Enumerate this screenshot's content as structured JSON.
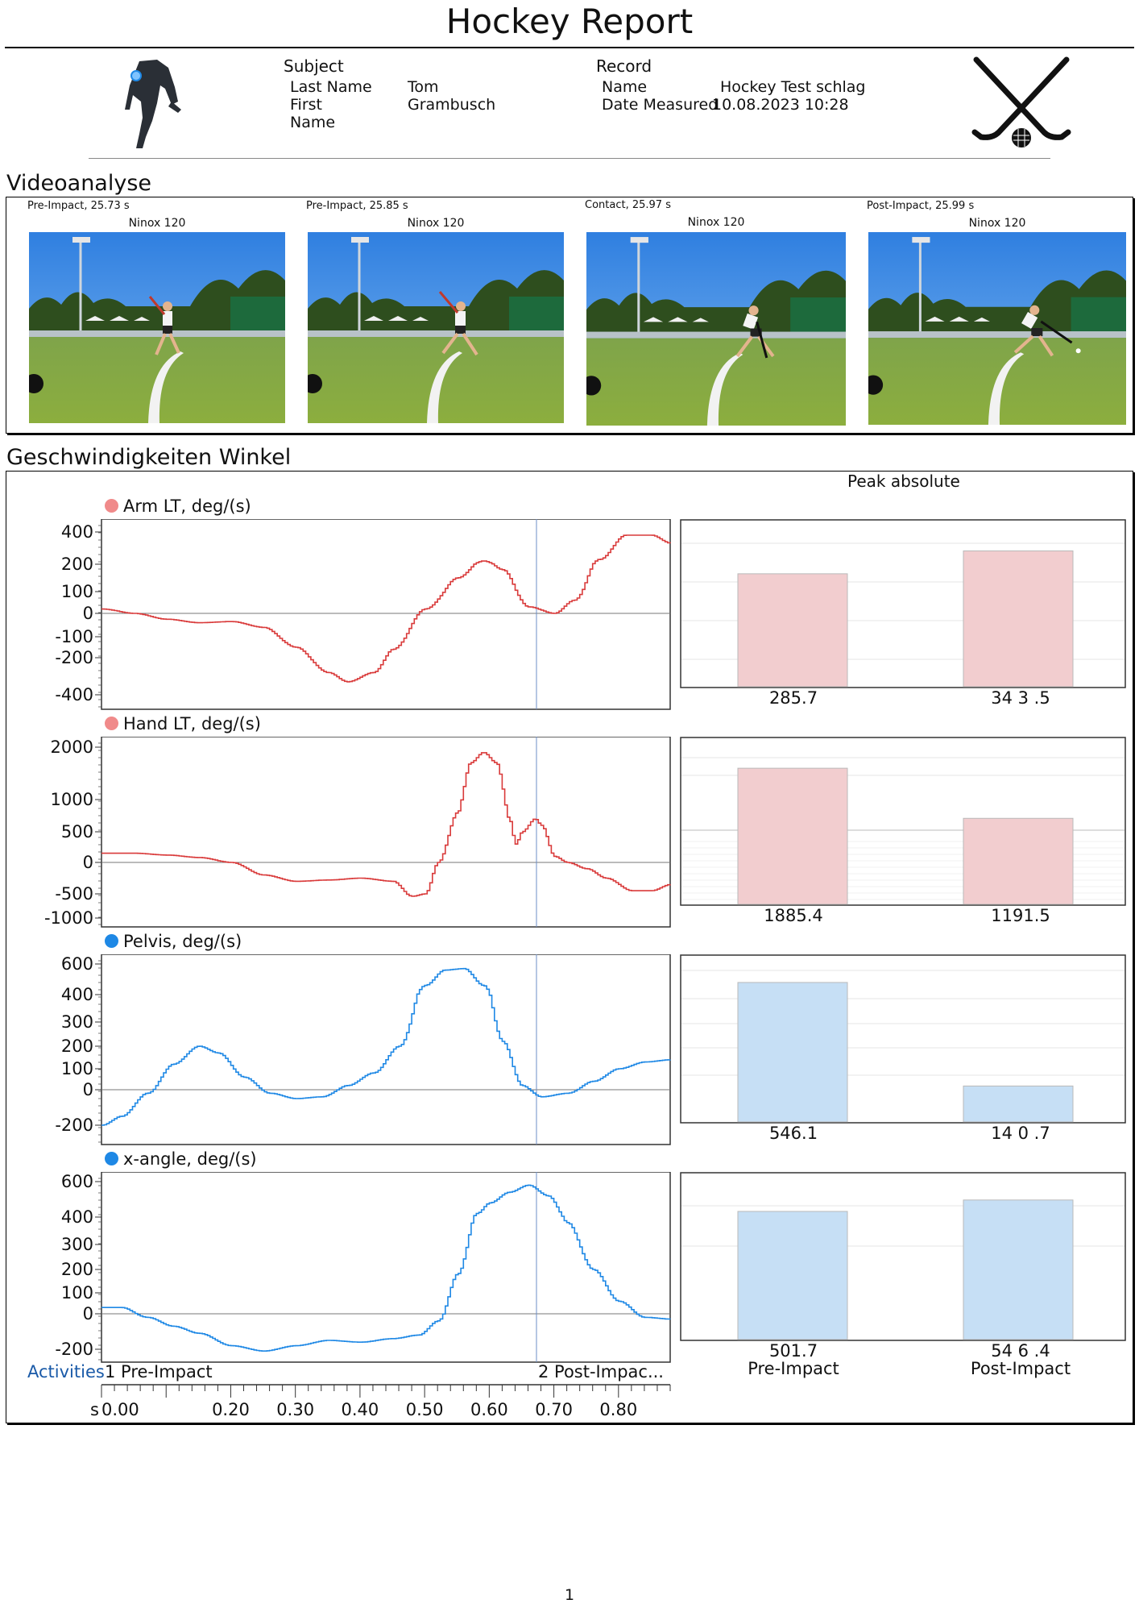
{
  "title": "Hockey Report",
  "subject": {
    "label": "Subject",
    "last_name_label": "Last Name",
    "first_name_label_1": "First",
    "first_name_label_2": "Name",
    "last_name_value": "Tom",
    "first_name_value": "Grambusch",
    "icon": "runner-figure-icon"
  },
  "record": {
    "label": "Record",
    "name_label": "Name",
    "name_value": "Hockey Test schlag",
    "date_label": "Date Measured",
    "date_value": "10.08.2023 10:28",
    "icon": "crossed-hockey-sticks-icon"
  },
  "video": {
    "section_title": "Videoanalyse",
    "frames": [
      {
        "caption": "Pre-Impact, 25.73 s",
        "camera": "Ninox 120"
      },
      {
        "caption": "Pre-Impact, 25.85 s",
        "camera": "Ninox 120"
      },
      {
        "caption": "Contact, 25.97 s",
        "camera": "Ninox 120"
      },
      {
        "caption": "Post-Impact, 25.99 s",
        "camera": "Ninox 120"
      }
    ]
  },
  "speeds": {
    "section_title": "Geschwindigkeiten Winkel",
    "bar_header": "Peak absolute",
    "bar_categories": [
      "Pre-Impact",
      "Post-Impact"
    ]
  },
  "chart_data": [
    {
      "type": "line",
      "title": "Arm LT, deg/(s)",
      "color": "#d93a3a",
      "marker_color": "#f08a8a",
      "yticks": [
        "400",
        "200",
        "100",
        "0",
        "-100",
        "-200",
        "-400"
      ],
      "x": [
        0.0,
        0.05,
        0.1,
        0.15,
        0.2,
        0.25,
        0.3,
        0.35,
        0.38,
        0.42,
        0.45,
        0.5,
        0.55,
        0.59,
        0.62,
        0.66,
        0.7,
        0.73,
        0.77,
        0.81,
        0.85,
        0.88
      ],
      "y": [
        20,
        0,
        -25,
        -40,
        -35,
        -60,
        -150,
        -280,
        -330,
        -280,
        -160,
        20,
        150,
        220,
        180,
        30,
        0,
        60,
        230,
        380,
        380,
        330
      ]
    },
    {
      "type": "line",
      "title": "Hand LT, deg/(s)",
      "color": "#d93a3a",
      "marker_color": "#f08a8a",
      "yticks": [
        "2000",
        "1000",
        "500",
        "0",
        "-500",
        "-1000"
      ],
      "x": [
        0.0,
        0.05,
        0.1,
        0.15,
        0.2,
        0.25,
        0.3,
        0.35,
        0.4,
        0.45,
        0.48,
        0.5,
        0.52,
        0.55,
        0.57,
        0.59,
        0.61,
        0.63,
        0.64,
        0.65,
        0.67,
        0.68,
        0.7,
        0.72,
        0.75,
        0.78,
        0.82,
        0.85,
        0.88
      ],
      "y": [
        150,
        150,
        120,
        80,
        0,
        -200,
        -300,
        -280,
        -250,
        -300,
        -550,
        -500,
        0,
        800,
        1700,
        1900,
        1700,
        700,
        300,
        500,
        700,
        600,
        100,
        0,
        -100,
        -250,
        -450,
        -450,
        -350
      ]
    },
    {
      "type": "line",
      "title": "Pelvis, deg/(s)",
      "color": "#1e88e5",
      "marker_color": "#1e88e5",
      "yticks": [
        "600",
        "400",
        "300",
        "200",
        "100",
        "0",
        "-200"
      ],
      "x": [
        0.0,
        0.03,
        0.07,
        0.11,
        0.15,
        0.18,
        0.22,
        0.26,
        0.3,
        0.34,
        0.38,
        0.42,
        0.46,
        0.5,
        0.53,
        0.56,
        0.59,
        0.62,
        0.65,
        0.68,
        0.72,
        0.76,
        0.8,
        0.84,
        0.88
      ],
      "y": [
        -200,
        -150,
        -20,
        120,
        200,
        170,
        60,
        -20,
        -50,
        -40,
        20,
        80,
        200,
        460,
        560,
        570,
        460,
        220,
        20,
        -40,
        -20,
        40,
        100,
        130,
        140
      ]
    },
    {
      "type": "line",
      "title": "x-angle, deg/(s)",
      "color": "#1e88e5",
      "marker_color": "#1e88e5",
      "yticks": [
        "600",
        "400",
        "300",
        "200",
        "100",
        "0",
        "-200"
      ],
      "x": [
        0.0,
        0.03,
        0.07,
        0.11,
        0.15,
        0.2,
        0.25,
        0.3,
        0.35,
        0.4,
        0.45,
        0.49,
        0.52,
        0.55,
        0.58,
        0.6,
        0.63,
        0.66,
        0.69,
        0.72,
        0.76,
        0.8,
        0.84,
        0.88
      ],
      "y": [
        30,
        30,
        -20,
        -70,
        -110,
        -180,
        -210,
        -180,
        -150,
        -160,
        -140,
        -120,
        -40,
        180,
        420,
        480,
        540,
        580,
        520,
        380,
        200,
        60,
        -20,
        -30
      ]
    },
    {
      "type": "bar",
      "title": "Peak absolute",
      "categories": [
        "Pre-Impact",
        "Post-Impact"
      ],
      "series": [
        {
          "values": [
            285.7,
            343.5
          ],
          "labels": [
            "285.7",
            "34 3 .5"
          ],
          "color": "#f2cdcf"
        },
        {
          "values": [
            1885.4,
            1191.5
          ],
          "labels": [
            "1885.4",
            "1191.5"
          ],
          "color": "#f2cdcf"
        },
        {
          "values": [
            546.1,
            140.7
          ],
          "labels": [
            "546.1",
            "14 0 .7"
          ],
          "color": "#c6dff5"
        },
        {
          "values": [
            501.7,
            546.4
          ],
          "labels": [
            "501.7",
            "54 6 .4"
          ],
          "color": "#c6dff5"
        }
      ]
    }
  ],
  "timeline": {
    "activities_label": "Activities",
    "activity_1": "1 Pre-Impact",
    "activity_2": "2 Post-Impac...",
    "unit": "s",
    "x_ticks": [
      "0.00",
      "0.20",
      "0.30",
      "0.40",
      "0.50",
      "0.60",
      "0.70",
      "0.80"
    ]
  },
  "page_number": "1"
}
